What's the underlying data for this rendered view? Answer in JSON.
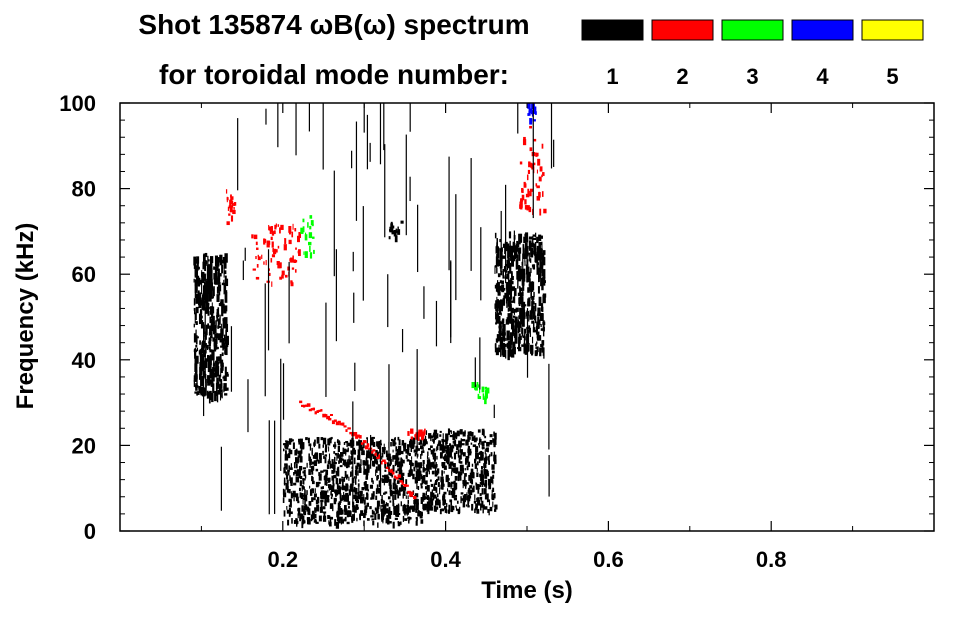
{
  "chart_data": {
    "type": "heatmap",
    "title_line1": "Shot 135874 ωB(ω) spectrum",
    "title_line2": "for toroidal mode number:",
    "xlabel": "Time (s)",
    "ylabel": "Frequency (kHz)",
    "xlim": [
      0.0,
      1.0
    ],
    "ylim": [
      0,
      100
    ],
    "x_ticks": [
      "0.2",
      "0.4",
      "0.6",
      "0.8"
    ],
    "x_tick_values": [
      0.2,
      0.4,
      0.6,
      0.8
    ],
    "y_ticks": [
      "0",
      "20",
      "40",
      "60",
      "80",
      "100"
    ],
    "y_tick_values": [
      0,
      20,
      40,
      60,
      80,
      100
    ],
    "legend_placement": "top",
    "legend": [
      {
        "label": "1",
        "color": "#000000"
      },
      {
        "label": "2",
        "color": "#ff0000"
      },
      {
        "label": "3",
        "color": "#00ff00"
      },
      {
        "label": "4",
        "color": "#0000ff"
      },
      {
        "label": "5",
        "color": "#ffff00"
      }
    ],
    "regions": [
      {
        "mode": 1,
        "t": [
          0.09,
          0.13
        ],
        "f": [
          32,
          65
        ],
        "note": "dense burst"
      },
      {
        "mode": 1,
        "t": [
          0.2,
          0.37
        ],
        "f": [
          2,
          22
        ],
        "note": "low-frequency band"
      },
      {
        "mode": 1,
        "t": [
          0.37,
          0.46
        ],
        "f": [
          5,
          24
        ],
        "note": "low-frequency band"
      },
      {
        "mode": 1,
        "t": [
          0.46,
          0.52
        ],
        "f": [
          42,
          70
        ],
        "note": "burst"
      },
      {
        "mode": 1,
        "t": [
          0.33,
          0.345
        ],
        "f": [
          68,
          73
        ],
        "note": "blob"
      },
      {
        "mode": 2,
        "t": [
          0.16,
          0.22
        ],
        "f": [
          58,
          72
        ],
        "note": "cluster"
      },
      {
        "mode": 2,
        "t": [
          0.13,
          0.14
        ],
        "f": [
          72,
          80
        ],
        "note": "cluster"
      },
      {
        "mode": 2,
        "t": [
          0.22,
          0.36
        ],
        "f": [
          8,
          30
        ],
        "note": "descending chirp"
      },
      {
        "mode": 2,
        "t": [
          0.35,
          0.38
        ],
        "f": [
          22,
          24
        ],
        "note": "segment"
      },
      {
        "mode": 2,
        "t": [
          0.49,
          0.52
        ],
        "f": [
          75,
          95
        ],
        "note": "streak"
      },
      {
        "mode": 3,
        "t": [
          0.22,
          0.24
        ],
        "f": [
          65,
          74
        ],
        "note": "spots"
      },
      {
        "mode": 3,
        "t": [
          0.43,
          0.45
        ],
        "f": [
          31,
          35
        ],
        "note": "spots"
      },
      {
        "mode": 4,
        "t": [
          0.5,
          0.51
        ],
        "f": [
          96,
          100
        ],
        "note": "spots"
      }
    ]
  }
}
